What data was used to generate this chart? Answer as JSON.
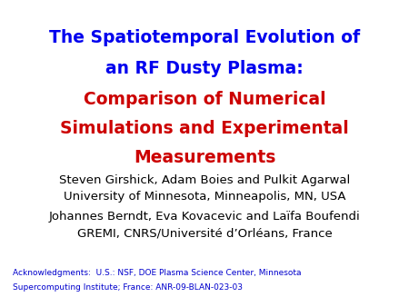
{
  "background_color": "#ffffff",
  "title_line1": "The Spatiotemporal Evolution of",
  "title_line2": "an RF Dusty Plasma:",
  "subtitle_line1": "Comparison of Numerical",
  "subtitle_line2": "Simulations and Experimental",
  "subtitle_line3": "Measurements",
  "title_color": "#0000ee",
  "subtitle_color": "#cc0000",
  "author_line1": "Steven Girshick, Adam Boies and Pulkit Agarwal",
  "author_line2": "University of Minnesota, Minneapolis, MN, USA",
  "author_line3": "Johannes Berndt, Eva Kovacevic and Laïfa Boufendi",
  "author_line4": "GREMI, CNRS/Université d’Orléans, France",
  "author_color": "#000000",
  "ack_line1": "Acknowledgments:  U.S.: NSF, DOE Plasma Science Center, Minnesota",
  "ack_line2": "Supercomputing Institute; France: ANR-09-BLAN-023-03",
  "ack_color": "#0000cc",
  "title_fontsize": 13.5,
  "author_fontsize": 9.5,
  "ack_fontsize": 6.5
}
